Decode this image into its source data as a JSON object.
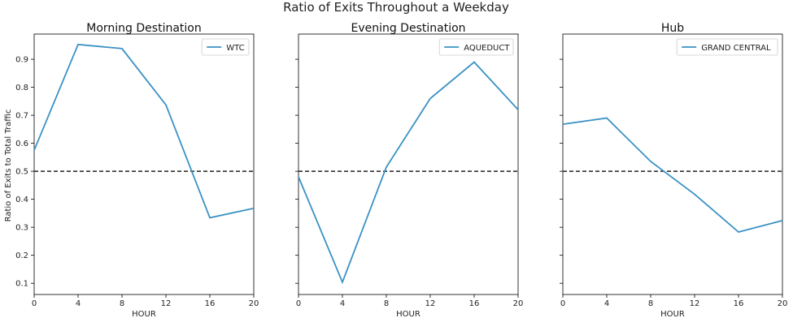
{
  "chart_data": {
    "suptitle": "Ratio of Exits Throughout a Weekday",
    "ylabel": "Ratio of Exits to Total Traffic",
    "xlabel": "HOUR",
    "x": [
      0,
      4,
      8,
      12,
      16,
      20
    ],
    "xticks": [
      "0",
      "4",
      "8",
      "12",
      "16",
      "20"
    ],
    "yticks": [
      "0.1",
      "0.2",
      "0.3",
      "0.4",
      "0.5",
      "0.6",
      "0.7",
      "0.8",
      "0.9"
    ],
    "ylim": [
      0.06,
      0.99
    ],
    "xlim": [
      0,
      20
    ],
    "reference_line": 0.5,
    "sharey": true,
    "line_color": "#3a92c5",
    "panels": [
      {
        "type": "line",
        "title": "Morning Destination",
        "series": [
          {
            "name": "WTC",
            "values": [
              0.575,
              0.953,
              0.938,
              0.737,
              0.334,
              0.368
            ]
          }
        ],
        "legend": "top-right"
      },
      {
        "type": "line",
        "title": "Evening Destination",
        "series": [
          {
            "name": "AQUEDUCT",
            "values": [
              0.48,
              0.104,
              0.515,
              0.76,
              0.89,
              0.72
            ]
          }
        ],
        "legend": "top-right"
      },
      {
        "type": "line",
        "title": "Hub",
        "series": [
          {
            "name": "GRAND CENTRAL",
            "values": [
              0.668,
              0.69,
              0.535,
              0.418,
              0.283,
              0.324
            ]
          }
        ],
        "legend": "top-right"
      }
    ]
  }
}
